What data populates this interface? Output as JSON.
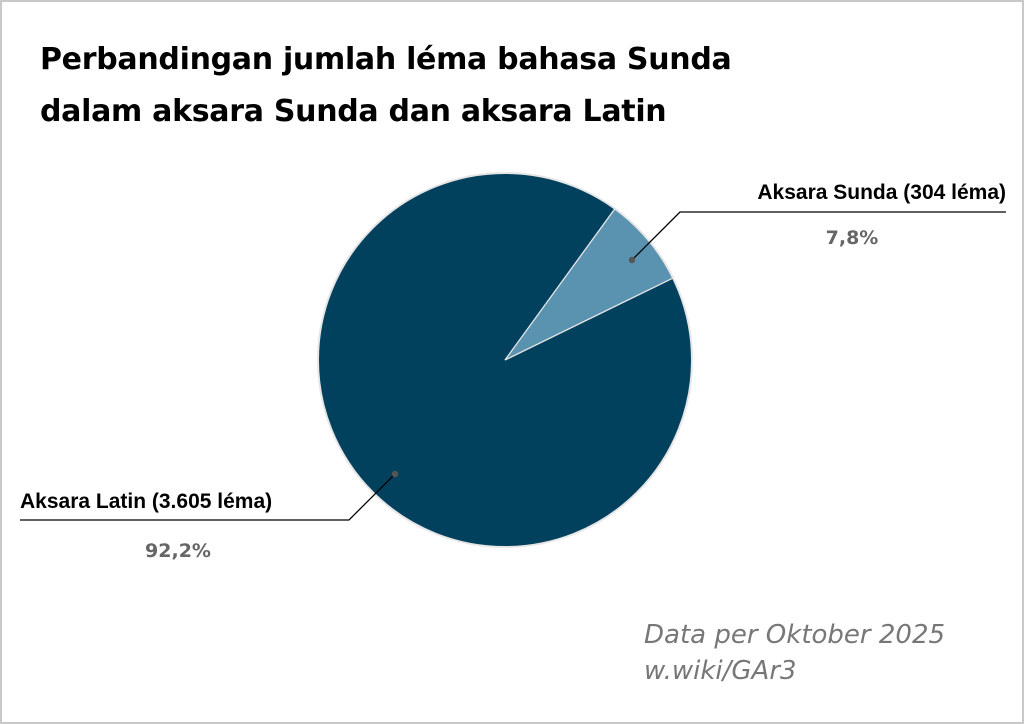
{
  "chart_data": {
    "type": "pie",
    "title_lines": [
      "Perbandingan jumlah léma bahasa Sunda",
      "dalam aksara Sunda dan aksara Latin"
    ],
    "slices": [
      {
        "label": "Aksara Sunda (304 léma)",
        "value": 304,
        "percent_label": "7,8%",
        "color": "#5a93b0"
      },
      {
        "label": "Aksara Latin (3.605 léma)",
        "value": 3605,
        "percent_label": "92,2%",
        "color": "#02415e"
      }
    ],
    "legend": "none"
  },
  "footnotes": [
    "Data per Oktober 2025",
    "w.wiki/GAr3"
  ],
  "colors": {
    "background": "#ffffff",
    "border": "#c8c8c8",
    "slice_edge": "#e6e6e6",
    "percent_text": "#666666",
    "footnote_text": "#777777"
  }
}
